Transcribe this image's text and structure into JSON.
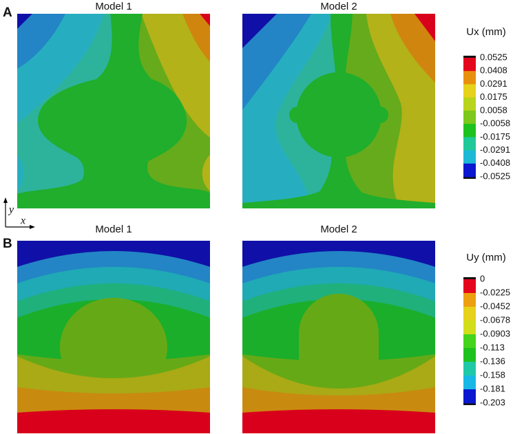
{
  "panels": [
    {
      "label": "A",
      "subplots": [
        {
          "title": "Model 1"
        },
        {
          "title": "Model 2"
        }
      ],
      "colorbar": {
        "title": "Ux (mm)",
        "labels": [
          "0.0525",
          "0.0408",
          "0.0291",
          "0.0175",
          "0.0058",
          "-0.0058",
          "-0.0175",
          "-0.0291",
          "-0.0408",
          "-0.0525"
        ],
        "colors": [
          "#e4061c",
          "#e8900e",
          "#e6d21a",
          "#b8d41c",
          "#7cc81c",
          "#1ec21e",
          "#1fc99a",
          "#1cb8d6",
          "#0a18d0"
        ]
      }
    },
    {
      "label": "B",
      "subplots": [
        {
          "title": "Model 1"
        },
        {
          "title": "Model 2"
        }
      ],
      "colorbar": {
        "title": "Uy (mm)",
        "labels": [
          "0",
          "-0.0225",
          "-0.0452",
          "-0.0678",
          "-0.0903",
          "-0.113",
          "-0.136",
          "-0.158",
          "-0.181",
          "-0.203"
        ],
        "colors": [
          "#e4061c",
          "#eca010",
          "#e6d21a",
          "#d2de1a",
          "#44d41c",
          "#1ec21e",
          "#1fc9a8",
          "#18b8e6",
          "#0a18d0"
        ]
      }
    }
  ],
  "axes": {
    "x": "x",
    "y": "y"
  }
}
